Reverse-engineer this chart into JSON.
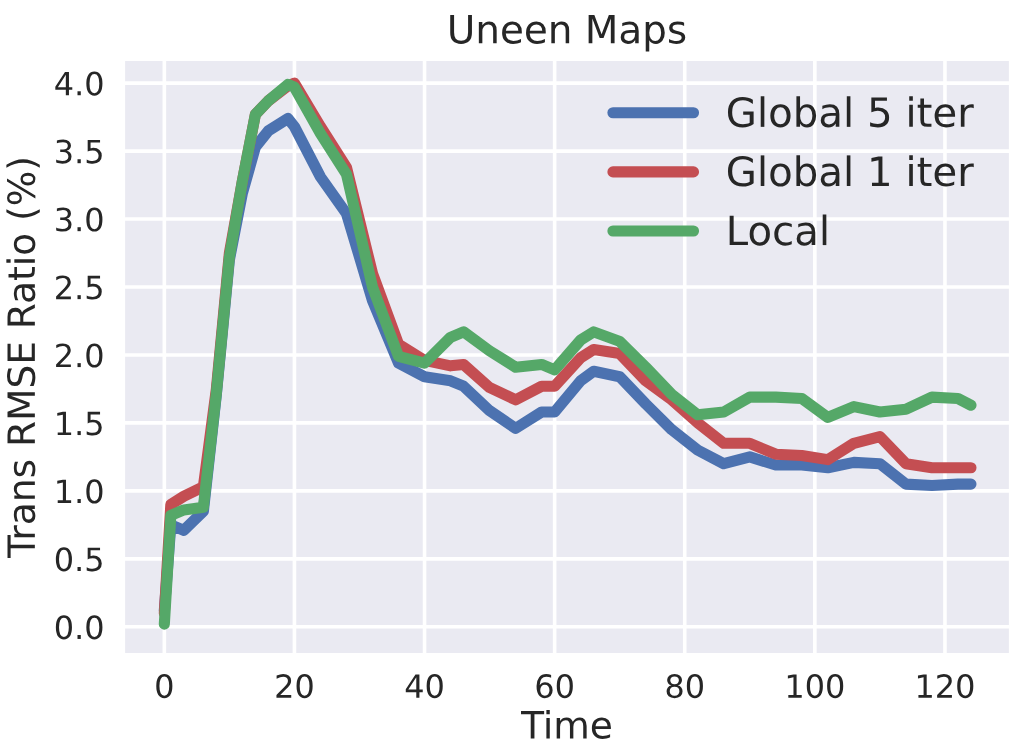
{
  "chart_data": {
    "type": "line",
    "title": "Uneen Maps",
    "xlabel": "Time",
    "ylabel": "Trans RMSE Ratio (%)",
    "xlim": [
      -6.2,
      130
    ],
    "xticks": [
      0,
      20,
      40,
      60,
      80,
      100,
      120
    ],
    "ylim": [
      -0.2,
      4.17
    ],
    "yticks": [
      {
        "value": 0,
        "label": "0.0"
      },
      {
        "value": 0.5,
        "label": "0.5"
      },
      {
        "value": 1,
        "label": "1.0"
      },
      {
        "value": 1.5,
        "label": "1.5"
      },
      {
        "value": 2,
        "label": "2.0"
      },
      {
        "value": 2.5,
        "label": "2.5"
      },
      {
        "value": 3,
        "label": "3.0"
      },
      {
        "value": 3.5,
        "label": "3.5"
      },
      {
        "value": 4,
        "label": "4.0"
      }
    ],
    "grid": true,
    "legend": "top right",
    "marker": "none",
    "line_style": "solid",
    "x": [
      0,
      1,
      3,
      6,
      8,
      10,
      12,
      14,
      16,
      19,
      20,
      24,
      28,
      32,
      36,
      40,
      44,
      46,
      50,
      54,
      58,
      60,
      64,
      66,
      70,
      74,
      78,
      82,
      86,
      90,
      94,
      98,
      102,
      106,
      110,
      114,
      118,
      122,
      124
    ],
    "series": [
      {
        "name": "Global 5 iter",
        "color": "#4c72b0",
        "values": [
          0.12,
          0.75,
          0.71,
          0.85,
          1.71,
          2.7,
          3.19,
          3.53,
          3.65,
          3.74,
          3.68,
          3.31,
          3.04,
          2.4,
          1.94,
          1.84,
          1.81,
          1.77,
          1.59,
          1.46,
          1.58,
          1.58,
          1.81,
          1.88,
          1.84,
          1.64,
          1.45,
          1.3,
          1.2,
          1.25,
          1.19,
          1.19,
          1.17,
          1.21,
          1.2,
          1.05,
          1.04,
          1.05,
          1.05
        ]
      },
      {
        "name": "Global 1 iter",
        "color": "#c44e52",
        "values": [
          0.1,
          0.9,
          0.96,
          1.03,
          1.75,
          2.75,
          3.28,
          3.77,
          3.87,
          3.98,
          4.0,
          3.68,
          3.38,
          2.6,
          2.08,
          1.96,
          1.92,
          1.93,
          1.76,
          1.67,
          1.77,
          1.77,
          1.98,
          2.04,
          2.01,
          1.81,
          1.67,
          1.5,
          1.35,
          1.35,
          1.27,
          1.26,
          1.23,
          1.35,
          1.4,
          1.2,
          1.17,
          1.17,
          1.17
        ]
      },
      {
        "name": "Local",
        "color": "#55a868",
        "values": [
          0.02,
          0.82,
          0.86,
          0.88,
          1.72,
          2.72,
          3.28,
          3.77,
          3.87,
          3.99,
          3.97,
          3.63,
          3.33,
          2.5,
          1.99,
          1.94,
          2.13,
          2.17,
          2.03,
          1.91,
          1.93,
          1.89,
          2.11,
          2.17,
          2.1,
          1.91,
          1.71,
          1.56,
          1.58,
          1.69,
          1.69,
          1.68,
          1.54,
          1.62,
          1.58,
          1.6,
          1.69,
          1.68,
          1.63
        ]
      }
    ]
  }
}
